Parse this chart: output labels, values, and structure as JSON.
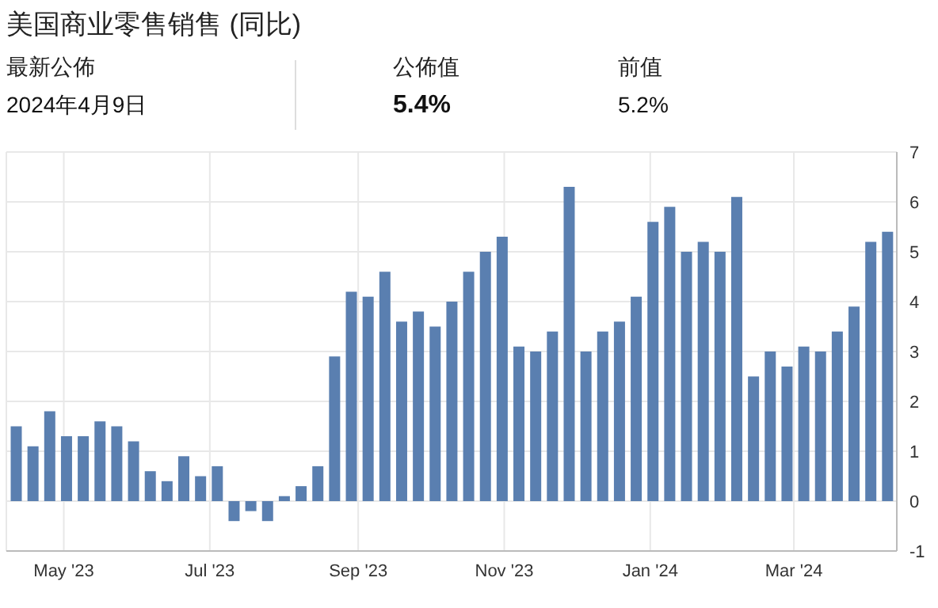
{
  "chart_data": {
    "type": "bar",
    "title": "美国商业零售销售 (同比)",
    "annotations": [
      "最新公佈",
      "2024年4月9日",
      "公佈值",
      "5.4%",
      "前值",
      "5.2%"
    ],
    "x": [
      "2023-04-11",
      "2023-04-18",
      "2023-04-25",
      "2023-05-02",
      "2023-05-09",
      "2023-05-16",
      "2023-05-23",
      "2023-05-30",
      "2023-06-06",
      "2023-06-13",
      "2023-06-20",
      "2023-06-27",
      "2023-07-04",
      "2023-07-11",
      "2023-07-18",
      "2023-07-25",
      "2023-08-01",
      "2023-08-08",
      "2023-08-15",
      "2023-08-22",
      "2023-08-29",
      "2023-09-05",
      "2023-09-12",
      "2023-09-19",
      "2023-09-26",
      "2023-10-03",
      "2023-10-10",
      "2023-10-17",
      "2023-10-24",
      "2023-10-31",
      "2023-11-07",
      "2023-11-14",
      "2023-11-21",
      "2023-11-28",
      "2023-12-05",
      "2023-12-12",
      "2023-12-19",
      "2023-12-26",
      "2024-01-02",
      "2024-01-09",
      "2024-01-16",
      "2024-01-23",
      "2024-01-30",
      "2024-02-06",
      "2024-02-13",
      "2024-02-20",
      "2024-02-27",
      "2024-03-05",
      "2024-03-12",
      "2024-03-19",
      "2024-03-26",
      "2024-04-02",
      "2024-04-09"
    ],
    "values": [
      1.5,
      1.1,
      1.8,
      1.3,
      1.3,
      1.6,
      1.5,
      1.2,
      0.6,
      0.4,
      0.9,
      0.5,
      0.7,
      -0.4,
      -0.2,
      -0.4,
      0.1,
      0.3,
      0.7,
      2.9,
      4.2,
      4.1,
      4.6,
      3.6,
      3.8,
      3.5,
      4.0,
      4.6,
      5.0,
      5.3,
      3.1,
      3.0,
      3.4,
      6.3,
      3.0,
      3.4,
      3.6,
      4.1,
      5.6,
      5.9,
      5.0,
      5.2,
      5.0,
      6.1,
      2.5,
      3.0,
      2.7,
      3.1,
      3.0,
      3.4,
      3.9,
      5.2,
      5.4
    ],
    "color": "#5a7fb0",
    "xlim": [
      "2023-04-07",
      "2024-04-13"
    ],
    "xticks": [
      {
        "value": "2023-05-01",
        "label": "May '23"
      },
      {
        "value": "2023-07-01",
        "label": "Jul '23"
      },
      {
        "value": "2023-09-01",
        "label": "Sep '23"
      },
      {
        "value": "2023-11-01",
        "label": "Nov '23"
      },
      {
        "value": "2024-01-01",
        "label": "Jan '24"
      },
      {
        "value": "2024-03-01",
        "label": "Mar '24"
      }
    ],
    "ylim": [
      -1,
      7
    ],
    "yticks": [
      -1,
      0,
      1,
      2,
      3,
      4,
      5,
      6,
      7
    ],
    "grid": true
  }
}
